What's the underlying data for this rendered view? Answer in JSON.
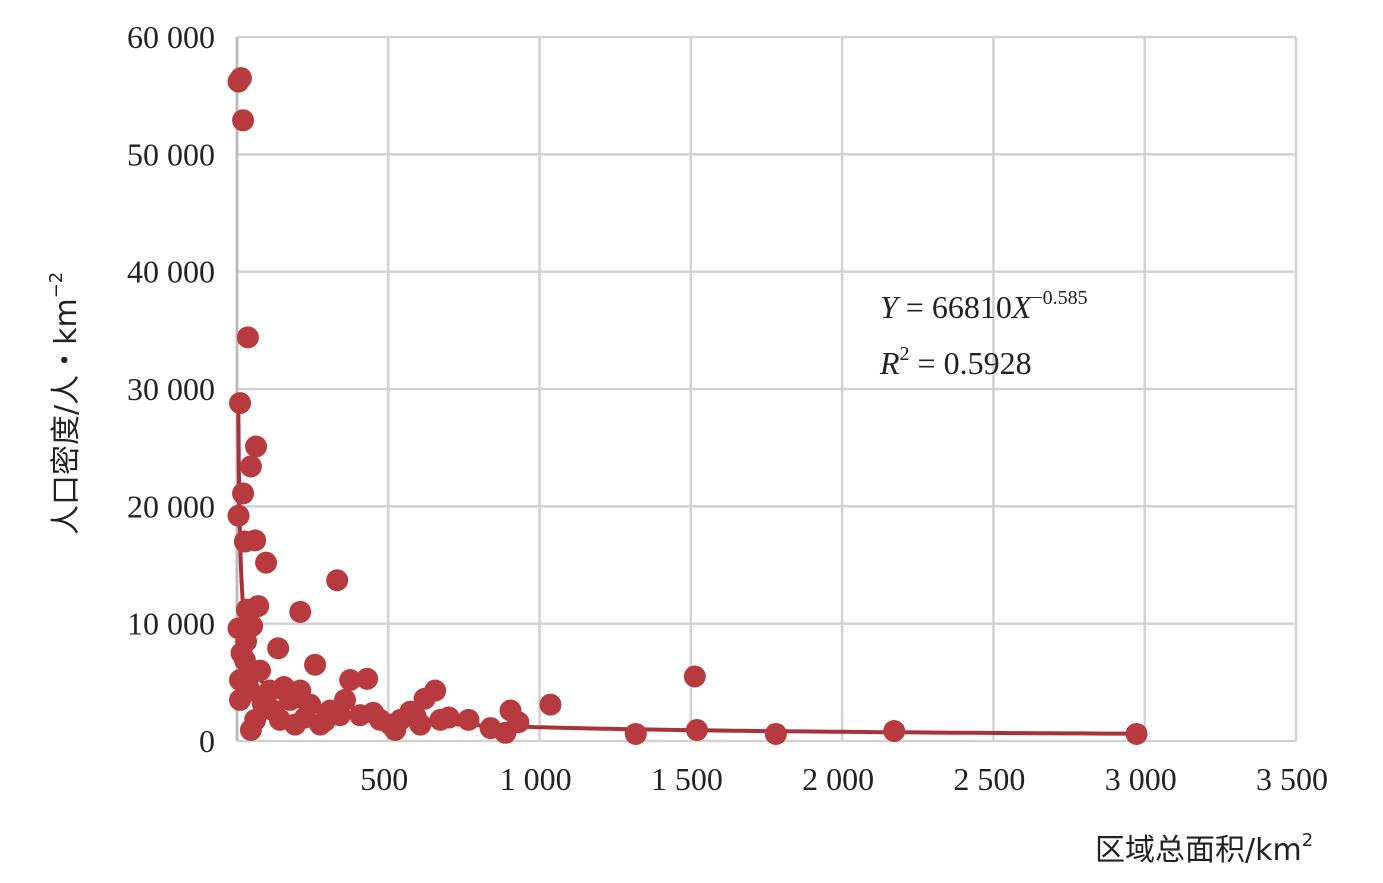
{
  "chart_data": {
    "type": "scatter",
    "title": "",
    "xlabel": "区域总面积/km",
    "xlabel_sup": "2",
    "ylabel": "人口密度/人・km",
    "ylabel_sup": "−2",
    "xlim": [
      0,
      3500
    ],
    "ylim": [
      0,
      60000
    ],
    "grid": true,
    "x_ticks": [
      500,
      1000,
      1500,
      2000,
      2500,
      3000,
      3500
    ],
    "x_tick_labels": [
      "500",
      "1 000",
      "1 500",
      "2 000",
      "2 500",
      "3 000",
      "3 500"
    ],
    "y_ticks": [
      0,
      10000,
      20000,
      30000,
      40000,
      50000,
      60000
    ],
    "y_tick_labels": [
      "0",
      "10 000",
      "20 000",
      "30 000",
      "40 000",
      "50 000",
      "60 000"
    ],
    "marker_color": "#b73a3f",
    "trendline_color": "#a8323a",
    "trendline": {
      "type": "power",
      "a": 66810,
      "b": -0.585,
      "r2": 0.5928,
      "x_range": [
        4,
        2973
      ]
    },
    "equation": {
      "line1_prefix": "Y",
      "line1_mid": " = 66810",
      "line1_var": "X",
      "line1_exp": "−0.585",
      "line2_var": "R",
      "line2_exp": "2",
      "line2_rest": " = 0.5928"
    },
    "points": [
      [
        5,
        56200
      ],
      [
        13,
        56500
      ],
      [
        20,
        52900
      ],
      [
        36,
        34400
      ],
      [
        10,
        28800
      ],
      [
        63,
        25100
      ],
      [
        46,
        23400
      ],
      [
        20,
        21100
      ],
      [
        5,
        19200
      ],
      [
        26,
        17000
      ],
      [
        60,
        17100
      ],
      [
        96,
        15200
      ],
      [
        331,
        13700
      ],
      [
        209,
        11000
      ],
      [
        33,
        11200
      ],
      [
        70,
        11500
      ],
      [
        5,
        9600
      ],
      [
        136,
        7900
      ],
      [
        258,
        6500
      ],
      [
        374,
        5200
      ],
      [
        430,
        5300
      ],
      [
        1513,
        5500
      ],
      [
        46,
        940
      ],
      [
        10,
        5200
      ],
      [
        26,
        6900
      ],
      [
        76,
        6000
      ],
      [
        109,
        4300
      ],
      [
        175,
        3500
      ],
      [
        209,
        4300
      ],
      [
        242,
        3100
      ],
      [
        308,
        2600
      ],
      [
        357,
        3500
      ],
      [
        407,
        2200
      ],
      [
        473,
        1800
      ],
      [
        540,
        1800
      ],
      [
        573,
        2500
      ],
      [
        606,
        1400
      ],
      [
        655,
        4300
      ],
      [
        672,
        1800
      ],
      [
        765,
        1800
      ],
      [
        838,
        1100
      ],
      [
        887,
        700
      ],
      [
        904,
        2600
      ],
      [
        1036,
        3100
      ],
      [
        1318,
        600
      ],
      [
        1520,
        940
      ],
      [
        1781,
        600
      ],
      [
        2172,
        850
      ],
      [
        2973,
        600
      ],
      [
        10,
        3500
      ],
      [
        43,
        4300
      ],
      [
        60,
        1800
      ],
      [
        142,
        1800
      ],
      [
        192,
        1400
      ],
      [
        275,
        1400
      ],
      [
        507,
        1400
      ],
      [
        523,
        940
      ],
      [
        15,
        7500
      ],
      [
        30,
        8500
      ],
      [
        50,
        9800
      ],
      [
        40,
        5500
      ],
      [
        85,
        3200
      ],
      [
        120,
        2600
      ],
      [
        155,
        4600
      ],
      [
        225,
        2000
      ],
      [
        290,
        1700
      ],
      [
        340,
        2200
      ],
      [
        450,
        2400
      ],
      [
        590,
        2100
      ],
      [
        620,
        3600
      ],
      [
        700,
        2000
      ],
      [
        930,
        1600
      ]
    ]
  }
}
